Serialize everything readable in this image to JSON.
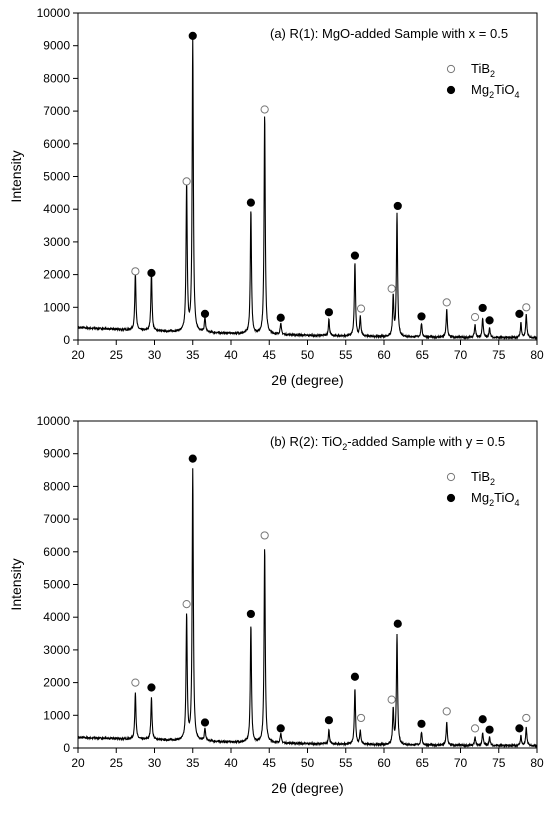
{
  "chart_data": [
    {
      "type": "line",
      "title": "(a) R(1): MgO-added Sample with x = 0.5",
      "xlabel": "2θ (degree)",
      "ylabel": "Intensity",
      "xlim": [
        20,
        80
      ],
      "ylim": [
        0,
        10000
      ],
      "xticks": [
        "20",
        "25",
        "30",
        "35",
        "40",
        "45",
        "50",
        "55",
        "60",
        "65",
        "70",
        "75",
        "80"
      ],
      "yticks": [
        "0",
        "1000",
        "2000",
        "3000",
        "4000",
        "5000",
        "6000",
        "7000",
        "8000",
        "9000",
        "10000"
      ],
      "grid": false,
      "legend_position": "top-right",
      "legend": [
        {
          "label": "TiB",
          "sub": "2",
          "marker": "open-circle"
        },
        {
          "label": "Mg",
          "sub": "2",
          "label2": "TiO",
          "sub2": "4",
          "marker": "filled-circle"
        }
      ],
      "background": {
        "x": [
          20,
          30,
          40,
          50,
          60,
          70,
          80
        ],
        "y": [
          380,
          270,
          200,
          140,
          100,
          80,
          70
        ]
      },
      "peaks": [
        {
          "x": 27.5,
          "y": 1780
        },
        {
          "x": 29.6,
          "y": 1800
        },
        {
          "x": 34.2,
          "y": 4550
        },
        {
          "x": 35.0,
          "y": 8950
        },
        {
          "x": 36.6,
          "y": 450
        },
        {
          "x": 42.6,
          "y": 3800
        },
        {
          "x": 44.4,
          "y": 6750
        },
        {
          "x": 46.5,
          "y": 350
        },
        {
          "x": 52.8,
          "y": 500
        },
        {
          "x": 56.2,
          "y": 2250
        },
        {
          "x": 56.9,
          "y": 600
        },
        {
          "x": 61.2,
          "y": 1200
        },
        {
          "x": 61.7,
          "y": 3750
        },
        {
          "x": 64.9,
          "y": 420
        },
        {
          "x": 68.2,
          "y": 850
        },
        {
          "x": 71.9,
          "y": 380
        },
        {
          "x": 72.9,
          "y": 600
        },
        {
          "x": 73.8,
          "y": 280
        },
        {
          "x": 77.9,
          "y": 450
        },
        {
          "x": 78.6,
          "y": 700
        }
      ],
      "markers": [
        {
          "x": 27.5,
          "y": 2100,
          "phase": "TiB2"
        },
        {
          "x": 29.6,
          "y": 2050,
          "phase": "Mg2TiO4"
        },
        {
          "x": 34.2,
          "y": 4850,
          "phase": "TiB2"
        },
        {
          "x": 35.0,
          "y": 9300,
          "phase": "Mg2TiO4"
        },
        {
          "x": 36.6,
          "y": 800,
          "phase": "Mg2TiO4"
        },
        {
          "x": 42.6,
          "y": 4200,
          "phase": "Mg2TiO4"
        },
        {
          "x": 44.4,
          "y": 7050,
          "phase": "TiB2"
        },
        {
          "x": 46.5,
          "y": 680,
          "phase": "Mg2TiO4"
        },
        {
          "x": 52.8,
          "y": 850,
          "phase": "Mg2TiO4"
        },
        {
          "x": 56.2,
          "y": 2580,
          "phase": "Mg2TiO4"
        },
        {
          "x": 57.0,
          "y": 960,
          "phase": "TiB2"
        },
        {
          "x": 61.0,
          "y": 1570,
          "phase": "TiB2"
        },
        {
          "x": 61.8,
          "y": 4100,
          "phase": "Mg2TiO4"
        },
        {
          "x": 64.9,
          "y": 720,
          "phase": "Mg2TiO4"
        },
        {
          "x": 68.2,
          "y": 1150,
          "phase": "TiB2"
        },
        {
          "x": 71.9,
          "y": 700,
          "phase": "TiB2"
        },
        {
          "x": 72.9,
          "y": 980,
          "phase": "Mg2TiO4"
        },
        {
          "x": 73.8,
          "y": 600,
          "phase": "Mg2TiO4"
        },
        {
          "x": 77.7,
          "y": 800,
          "phase": "Mg2TiO4"
        },
        {
          "x": 78.6,
          "y": 1000,
          "phase": "TiB2"
        }
      ]
    },
    {
      "type": "line",
      "title": "(b) R(2): TiO",
      "title_sub": "2",
      "title_rest": "-added Sample with y = 0.5",
      "xlabel": "2θ (degree)",
      "ylabel": "Intensity",
      "xlim": [
        20,
        80
      ],
      "ylim": [
        0,
        10000
      ],
      "xticks": [
        "20",
        "25",
        "30",
        "35",
        "40",
        "45",
        "50",
        "55",
        "60",
        "65",
        "70",
        "75",
        "80"
      ],
      "yticks": [
        "0",
        "1000",
        "2000",
        "3000",
        "4000",
        "5000",
        "6000",
        "7000",
        "8000",
        "9000",
        "10000"
      ],
      "grid": false,
      "legend_position": "top-right",
      "legend": [
        {
          "label": "TiB",
          "sub": "2",
          "marker": "open-circle"
        },
        {
          "label": "Mg",
          "sub": "2",
          "label2": "TiO",
          "sub2": "4",
          "marker": "filled-circle"
        }
      ],
      "background": {
        "x": [
          20,
          30,
          40,
          50,
          60,
          70,
          80
        ],
        "y": [
          320,
          250,
          180,
          130,
          100,
          80,
          70
        ]
      },
      "peaks": [
        {
          "x": 27.5,
          "y": 1450
        },
        {
          "x": 29.6,
          "y": 1280
        },
        {
          "x": 34.2,
          "y": 3850
        },
        {
          "x": 35.0,
          "y": 8300
        },
        {
          "x": 36.6,
          "y": 380
        },
        {
          "x": 42.6,
          "y": 3600
        },
        {
          "x": 44.4,
          "y": 6000
        },
        {
          "x": 46.5,
          "y": 300
        },
        {
          "x": 52.8,
          "y": 430
        },
        {
          "x": 56.2,
          "y": 1700
        },
        {
          "x": 56.9,
          "y": 420
        },
        {
          "x": 61.2,
          "y": 1050
        },
        {
          "x": 61.7,
          "y": 3350
        },
        {
          "x": 64.9,
          "y": 400
        },
        {
          "x": 68.2,
          "y": 700
        },
        {
          "x": 71.9,
          "y": 250
        },
        {
          "x": 72.9,
          "y": 400
        },
        {
          "x": 73.8,
          "y": 250
        },
        {
          "x": 77.9,
          "y": 300
        },
        {
          "x": 78.6,
          "y": 550
        }
      ],
      "markers": [
        {
          "x": 27.5,
          "y": 2000,
          "phase": "TiB2"
        },
        {
          "x": 29.6,
          "y": 1850,
          "phase": "Mg2TiO4"
        },
        {
          "x": 34.2,
          "y": 4400,
          "phase": "TiB2"
        },
        {
          "x": 35.0,
          "y": 8850,
          "phase": "Mg2TiO4"
        },
        {
          "x": 36.6,
          "y": 780,
          "phase": "Mg2TiO4"
        },
        {
          "x": 42.6,
          "y": 4100,
          "phase": "Mg2TiO4"
        },
        {
          "x": 44.4,
          "y": 6500,
          "phase": "TiB2"
        },
        {
          "x": 46.5,
          "y": 600,
          "phase": "Mg2TiO4"
        },
        {
          "x": 52.8,
          "y": 850,
          "phase": "Mg2TiO4"
        },
        {
          "x": 56.2,
          "y": 2180,
          "phase": "Mg2TiO4"
        },
        {
          "x": 57.0,
          "y": 920,
          "phase": "TiB2"
        },
        {
          "x": 61.0,
          "y": 1480,
          "phase": "TiB2"
        },
        {
          "x": 61.8,
          "y": 3800,
          "phase": "Mg2TiO4"
        },
        {
          "x": 64.9,
          "y": 740,
          "phase": "Mg2TiO4"
        },
        {
          "x": 68.2,
          "y": 1120,
          "phase": "TiB2"
        },
        {
          "x": 71.9,
          "y": 600,
          "phase": "TiB2"
        },
        {
          "x": 72.9,
          "y": 880,
          "phase": "Mg2TiO4"
        },
        {
          "x": 73.8,
          "y": 560,
          "phase": "Mg2TiO4"
        },
        {
          "x": 77.7,
          "y": 600,
          "phase": "Mg2TiO4"
        },
        {
          "x": 78.6,
          "y": 920,
          "phase": "TiB2"
        }
      ]
    }
  ]
}
